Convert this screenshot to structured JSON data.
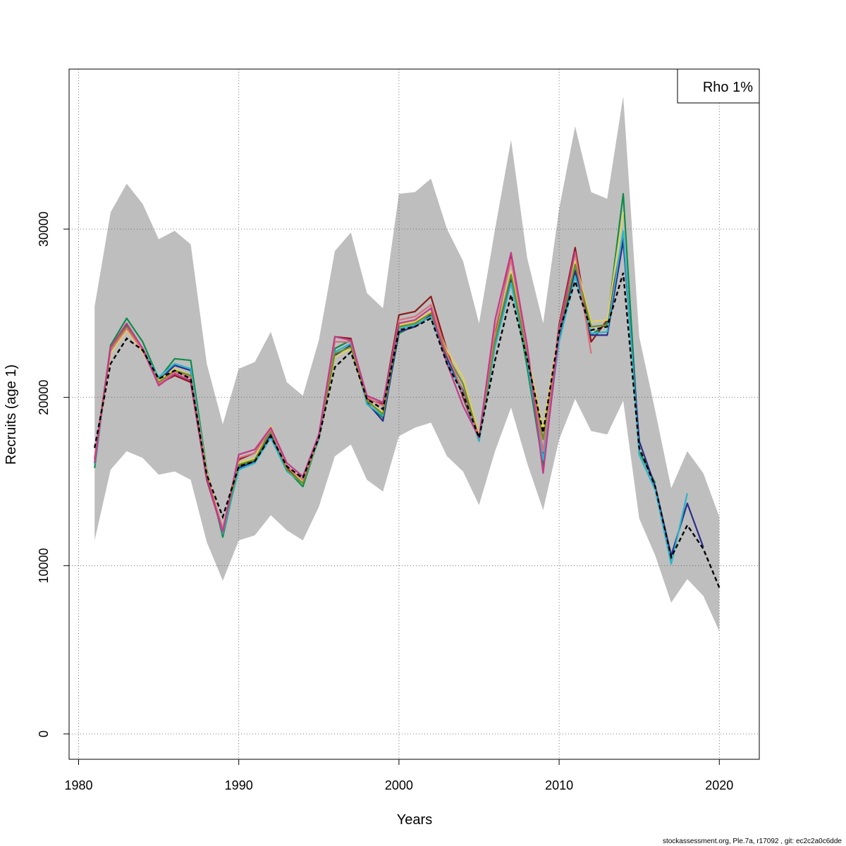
{
  "chart_data": {
    "type": "line",
    "title": "",
    "xlabel": "Years",
    "ylabel": "Recruits (age 1)",
    "xlim": [
      1980,
      2022
    ],
    "ylim": [
      0,
      38500
    ],
    "x_ticks": [
      1980,
      1990,
      2000,
      2010,
      2020
    ],
    "y_ticks": [
      0,
      10000,
      20000,
      30000
    ],
    "grid": true,
    "legend": {
      "position": "top-right",
      "text": "Rho 1%"
    },
    "confidence_band": {
      "color": "#bebebe",
      "x": [
        1981,
        1982,
        1983,
        1984,
        1985,
        1986,
        1987,
        1988,
        1989,
        1990,
        1991,
        1992,
        1993,
        1994,
        1995,
        1996,
        1997,
        1998,
        1999,
        2000,
        2001,
        2002,
        2003,
        2004,
        2005,
        2006,
        2007,
        2008,
        2009,
        2010,
        2011,
        2012,
        2013,
        2014,
        2015,
        2016,
        2017,
        2018,
        2019,
        2020
      ],
      "upper": [
        25400,
        31000,
        32700,
        31500,
        29400,
        29900,
        29100,
        22000,
        18400,
        21700,
        22100,
        23900,
        20900,
        20100,
        23400,
        28700,
        29800,
        26200,
        25300,
        32100,
        32200,
        33000,
        30000,
        28100,
        24400,
        30000,
        35300,
        28300,
        24400,
        31200,
        36100,
        32200,
        31800,
        37900,
        23600,
        19200,
        14600,
        16800,
        15500,
        12900
      ],
      "lower": [
        11500,
        15700,
        16800,
        16400,
        15400,
        15600,
        15100,
        11400,
        9100,
        11500,
        11800,
        13000,
        12100,
        11500,
        13500,
        16500,
        17200,
        15100,
        14400,
        17700,
        18200,
        18500,
        16500,
        15600,
        13600,
        16800,
        19400,
        16100,
        13300,
        17500,
        19900,
        18000,
        17800,
        19800,
        12800,
        10600,
        7800,
        9200,
        8200,
        6100
      ]
    },
    "reference_series": {
      "color": "#000000",
      "dashed": true,
      "x": [
        1981,
        1982,
        1983,
        1984,
        1985,
        1986,
        1987,
        1988,
        1989,
        1990,
        1991,
        1992,
        1993,
        1994,
        1995,
        1996,
        1997,
        1998,
        1999,
        2000,
        2001,
        2002,
        2003,
        2004,
        2005,
        2006,
        2007,
        2008,
        2009,
        2010,
        2011,
        2012,
        2013,
        2014,
        2015,
        2016,
        2017,
        2018,
        2019,
        2020
      ],
      "y": [
        17000,
        22000,
        23500,
        22800,
        21100,
        21600,
        21100,
        15400,
        12900,
        15900,
        16200,
        17700,
        15900,
        15200,
        17600,
        21800,
        22700,
        19900,
        19300,
        24000,
        24200,
        24700,
        22000,
        20200,
        17600,
        22200,
        26100,
        22300,
        17900,
        23900,
        26900,
        24000,
        24200,
        27400,
        17000,
        14700,
        10500,
        12400,
        11000,
        8700
      ]
    },
    "series": [
      {
        "color": "#0e8c48",
        "x": [
          1981,
          1982,
          1983,
          1984,
          1985,
          1986,
          1987,
          1988,
          1989,
          1990,
          1991,
          1992,
          1993,
          1994,
          1995,
          1996,
          1997,
          1998,
          1999,
          2000,
          2001,
          2002,
          2003,
          2004,
          2005,
          2006,
          2007,
          2008,
          2009,
          2010,
          2011,
          2012,
          2013,
          2014,
          2015,
          2016
        ],
        "y": [
          15800,
          23100,
          24700,
          23300,
          21100,
          22300,
          22200,
          15700,
          11700,
          15900,
          16300,
          18100,
          15700,
          14700,
          17600,
          22900,
          23400,
          19600,
          18800,
          23800,
          24300,
          24800,
          22200,
          20300,
          17400,
          23300,
          27200,
          21800,
          15900,
          23500,
          27600,
          23700,
          24400,
          32100,
          16800,
          14900
        ]
      },
      {
        "color": "#8b1a1a",
        "x": [
          1981,
          1982,
          1983,
          1984,
          1985,
          1986,
          1987,
          1988,
          1989,
          1990,
          1991,
          1992,
          1993,
          1994,
          1995,
          1996,
          1997,
          1998,
          1999,
          2000,
          2001,
          2002,
          2003,
          2004,
          2005,
          2006,
          2007,
          2008,
          2009,
          2010,
          2011,
          2012,
          2013,
          2014,
          2015
        ],
        "y": [
          16400,
          23000,
          24300,
          22800,
          20800,
          21300,
          20900,
          15100,
          12000,
          16300,
          16700,
          18200,
          15800,
          15000,
          17700,
          23600,
          23500,
          19900,
          19600,
          24900,
          25100,
          26000,
          22800,
          20000,
          17500,
          23800,
          28400,
          23000,
          16700,
          24300,
          28900,
          23300,
          24600,
          29600,
          17200
        ]
      },
      {
        "color": "#2c2c8c",
        "x": [
          1981,
          1982,
          1983,
          1984,
          1985,
          1986,
          1987,
          1988,
          1989,
          1990,
          1991,
          1992,
          1993,
          1994,
          1995,
          1996,
          1997,
          1998,
          1999,
          2000,
          2001,
          2002,
          2003,
          2004,
          2005,
          2006,
          2007,
          2008,
          2009,
          2010,
          2011,
          2012,
          2013,
          2014,
          2015,
          2016,
          2017,
          2018,
          2019
        ],
        "y": [
          16100,
          22800,
          24300,
          22900,
          21000,
          21900,
          21600,
          15500,
          12000,
          15800,
          16200,
          17800,
          15700,
          14900,
          17600,
          22500,
          23100,
          19700,
          18600,
          23900,
          24200,
          24900,
          22300,
          20400,
          17500,
          23200,
          27000,
          22400,
          16400,
          23400,
          27500,
          23700,
          23700,
          29300,
          17400,
          14700,
          10600,
          13700,
          11100
        ]
      },
      {
        "color": "#2ab5c9",
        "x": [
          1981,
          1982,
          1983,
          1984,
          1985,
          1986,
          1987,
          1988,
          1989,
          1990,
          1991,
          1992,
          1993,
          1994,
          1995,
          1996,
          1997,
          1998,
          1999,
          2000,
          2001,
          2002,
          2003,
          2004,
          2005,
          2006,
          2007,
          2008,
          2009,
          2010,
          2011,
          2012,
          2013,
          2014,
          2015,
          2016,
          2017,
          2018
        ],
        "y": [
          16000,
          22700,
          24100,
          22800,
          21200,
          22000,
          21700,
          15600,
          11900,
          15700,
          16100,
          17600,
          15600,
          14900,
          17500,
          22700,
          23200,
          19600,
          18900,
          24100,
          24300,
          24800,
          22100,
          20200,
          17400,
          23000,
          26800,
          22200,
          16300,
          23300,
          27200,
          23800,
          23900,
          29900,
          16600,
          14500,
          10100,
          14300
        ]
      },
      {
        "color": "#e0d060",
        "x": [
          1981,
          1982,
          1983,
          1984,
          1985,
          1986,
          1987,
          1988,
          1989,
          1990,
          1991,
          1992,
          1993,
          1994,
          1995,
          1996,
          1997,
          1998,
          1999,
          2000,
          2001,
          2002,
          2003,
          2004,
          2005,
          2006,
          2007,
          2008,
          2009,
          2010,
          2011,
          2012,
          2013,
          2014
        ],
        "y": [
          16200,
          22600,
          24000,
          22700,
          21000,
          21700,
          21300,
          15600,
          12100,
          16100,
          16400,
          18300,
          15900,
          15000,
          17700,
          22400,
          22900,
          19800,
          19100,
          24300,
          24500,
          25100,
          22800,
          21200,
          17800,
          23500,
          27500,
          22700,
          18100,
          24000,
          28100,
          24500,
          24600,
          31000
        ]
      },
      {
        "color": "#6b8e23",
        "x": [
          1981,
          1982,
          1983,
          1984,
          1985,
          1986,
          1987,
          1988,
          1989,
          1990,
          1991,
          1992,
          1993,
          1994,
          1995,
          1996,
          1997,
          1998,
          1999,
          2000,
          2001,
          2002,
          2003,
          2004,
          2005,
          2006,
          2007,
          2008,
          2009,
          2010,
          2011,
          2012,
          2013
        ],
        "y": [
          16300,
          22900,
          24200,
          22800,
          20900,
          21600,
          21300,
          15400,
          12100,
          16000,
          16300,
          18000,
          15700,
          14900,
          17600,
          22600,
          23000,
          19800,
          19000,
          24200,
          24400,
          25000,
          22500,
          20800,
          17600,
          23400,
          27300,
          22500,
          17500,
          23800,
          27900,
          24200,
          24300
        ]
      },
      {
        "color": "#d9707a",
        "x": [
          1981,
          1982,
          1983,
          1984,
          1985,
          1986,
          1987,
          1988,
          1989,
          1990,
          1991,
          1992,
          1993,
          1994,
          1995,
          1996,
          1997,
          1998,
          1999,
          2000,
          2001,
          2002,
          2003,
          2004,
          2005,
          2006,
          2007,
          2008,
          2009,
          2010,
          2011,
          2012
        ],
        "y": [
          16400,
          22800,
          24100,
          22800,
          20800,
          21500,
          21200,
          15300,
          12200,
          16400,
          16700,
          18100,
          15900,
          15100,
          17700,
          23300,
          23300,
          20000,
          19500,
          24600,
          24800,
          25500,
          22600,
          20300,
          17600,
          24000,
          28200,
          22800,
          16800,
          24100,
          28600,
          22600
        ]
      },
      {
        "color": "#c13b8a",
        "x": [
          1981,
          1982,
          1983,
          1984,
          1985,
          1986,
          1987,
          1988,
          1989,
          1990,
          1991,
          1992,
          1993,
          1994,
          1995,
          1996,
          1997,
          1998,
          1999,
          2000,
          2001,
          2002,
          2003,
          2004,
          2005,
          2006,
          2007,
          2008,
          2009,
          2010,
          2011
        ],
        "y": [
          16100,
          23000,
          24400,
          22900,
          20700,
          21400,
          21000,
          15200,
          12000,
          16600,
          16900,
          18200,
          16100,
          15300,
          17800,
          23600,
          23400,
          20100,
          19700,
          24400,
          24600,
          25300,
          22000,
          19500,
          17600,
          24600,
          28600,
          23100,
          15500,
          23900,
          28700
        ]
      }
    ]
  },
  "footer": "stockassessment.org, Ple.7a, r17092 , git: ec2c2a0c6dde"
}
